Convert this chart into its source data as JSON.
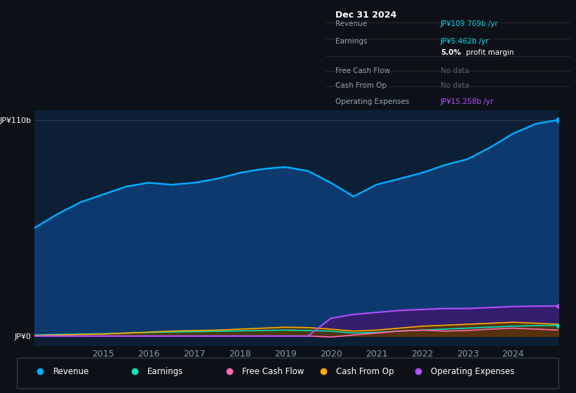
{
  "background_color": "#0d1117",
  "plot_bg_color": "#0d1f35",
  "title_box_date": "Dec 31 2024",
  "y_label_top": "JP¥110b",
  "y_label_bottom": "JP¥0",
  "x_ticks": [
    2015,
    2016,
    2017,
    2018,
    2019,
    2020,
    2021,
    2022,
    2023,
    2024
  ],
  "years": [
    2013.5,
    2014.0,
    2014.5,
    2015.0,
    2015.5,
    2016.0,
    2016.5,
    2017.0,
    2017.5,
    2018.0,
    2018.5,
    2019.0,
    2019.5,
    2020.0,
    2020.5,
    2021.0,
    2021.5,
    2022.0,
    2022.5,
    2023.0,
    2023.5,
    2024.0,
    2024.5,
    2025.0
  ],
  "revenue": [
    55,
    62,
    68,
    72,
    76,
    78,
    77,
    78,
    80,
    83,
    85,
    86,
    84,
    78,
    71,
    77,
    80,
    83,
    87,
    90,
    96,
    103,
    108,
    110
  ],
  "earnings": [
    0.5,
    0.8,
    1.0,
    1.2,
    1.5,
    1.8,
    2.0,
    2.2,
    2.4,
    2.6,
    2.8,
    3.0,
    2.8,
    2.5,
    1.5,
    1.8,
    2.5,
    3.0,
    3.5,
    4.0,
    4.5,
    5.0,
    5.3,
    5.46
  ],
  "free_cash_flow": [
    0.0,
    0.0,
    0.0,
    0.0,
    0.0,
    0.0,
    0.0,
    0.0,
    0.0,
    0.0,
    0.0,
    0.0,
    0.0,
    -0.5,
    0.5,
    1.5,
    2.5,
    3.0,
    2.5,
    2.8,
    3.5,
    4.0,
    3.5,
    3.0
  ],
  "cash_from_op": [
    0.3,
    0.5,
    0.8,
    1.0,
    1.5,
    2.0,
    2.5,
    2.8,
    3.0,
    3.5,
    4.0,
    4.5,
    4.3,
    3.5,
    2.5,
    3.0,
    4.0,
    5.0,
    5.5,
    6.0,
    6.5,
    7.0,
    6.5,
    6.0
  ],
  "operating_expenses": [
    0.0,
    0.0,
    0.0,
    0.0,
    0.0,
    0.0,
    0.0,
    0.0,
    0.0,
    0.0,
    0.0,
    0.0,
    0.0,
    9.0,
    11.0,
    12.0,
    13.0,
    13.5,
    14.0,
    14.0,
    14.5,
    15.0,
    15.2,
    15.258
  ],
  "revenue_color": "#00aaff",
  "earnings_color": "#00e5c0",
  "free_cash_flow_color": "#ff69b4",
  "cash_from_op_color": "#ffaa00",
  "operating_expenses_color": "#b44fff",
  "legend_items": [
    {
      "label": "Revenue",
      "color": "#00aaff"
    },
    {
      "label": "Earnings",
      "color": "#00e5c0"
    },
    {
      "label": "Free Cash Flow",
      "color": "#ff69b4"
    },
    {
      "label": "Cash From Op",
      "color": "#ffaa00"
    },
    {
      "label": "Operating Expenses",
      "color": "#b44fff"
    }
  ]
}
